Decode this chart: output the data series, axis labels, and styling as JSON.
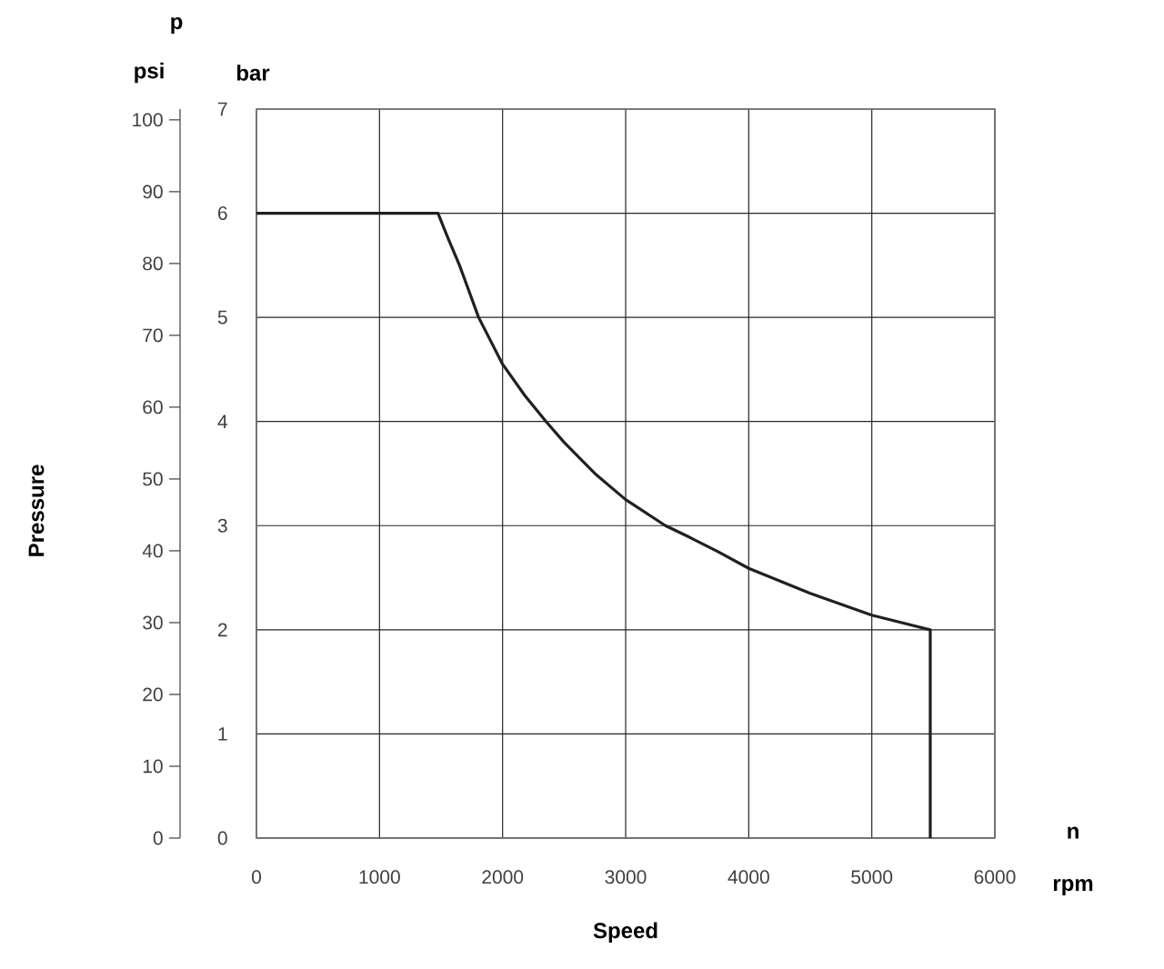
{
  "chart_data": {
    "type": "line",
    "xlabel": "Speed",
    "ylabel": "Pressure",
    "annotations": [
      "p",
      "psi",
      "bar",
      "n",
      "rpm"
    ],
    "xlim": [
      0,
      6000
    ],
    "xticks": [
      0,
      1000,
      2000,
      3000,
      4000,
      5000,
      6000
    ],
    "ylim": [
      0,
      101.5
    ],
    "yticks": [
      0,
      10,
      20,
      30,
      40,
      50,
      60,
      70,
      80,
      90,
      100
    ],
    "y2lim": [
      0,
      7
    ],
    "y2ticks": [
      0,
      1,
      2,
      3,
      4,
      5,
      6,
      7
    ],
    "grid": true,
    "line_style": "solid",
    "series": [
      {
        "axis": "y2",
        "color": "#231f20",
        "x": [
          0,
          1475,
          1560,
          1650,
          1805,
          2000,
          2180,
          2353,
          2500,
          2750,
          3000,
          3323,
          3500,
          3750,
          4000,
          4500,
          5000,
          5475,
          5475
        ],
        "values": [
          6,
          6,
          5.75,
          5.5,
          5,
          4.55,
          4.25,
          4,
          3.8,
          3.5,
          3.25,
          3,
          2.9,
          2.75,
          2.59,
          2.35,
          2.14,
          2,
          0
        ]
      }
    ]
  }
}
